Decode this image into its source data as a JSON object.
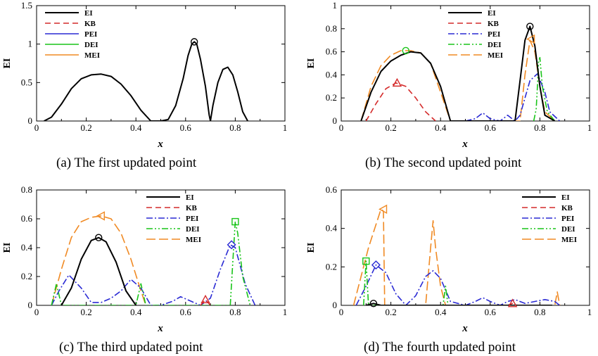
{
  "colors": {
    "EI": "#000000",
    "KB": "#d42a2a",
    "PEI": "#2a2ad4",
    "DEI": "#19c419",
    "MEI": "#f08a24"
  },
  "chart_data": [
    {
      "type": "line",
      "caption": "(a)   The first updated point",
      "xlabel": "x",
      "ylabel": "EI",
      "xlim": [
        0,
        1
      ],
      "ylim": [
        0,
        1.5
      ],
      "xticks": [
        "0",
        "0.2",
        "0.4",
        "0.6",
        "0.8",
        "1"
      ],
      "yticks": [
        "0",
        "0.5",
        "1",
        "1.5"
      ],
      "legend": [
        "EI",
        "KB",
        "PEI",
        "DEI",
        "MEI"
      ],
      "legend_position": "top-left",
      "series": [
        {
          "name": "EI",
          "style": "solid",
          "x": [
            0.03,
            0.06,
            0.1,
            0.14,
            0.18,
            0.22,
            0.26,
            0.3,
            0.34,
            0.38,
            0.42,
            0.46,
            0.5,
            0.53,
            0.56,
            0.59,
            0.61,
            0.625,
            0.635,
            0.645,
            0.66,
            0.68,
            0.695,
            0.7,
            0.71,
            0.73,
            0.75,
            0.77,
            0.79,
            0.81,
            0.83,
            0.85
          ],
          "y": [
            0,
            0.05,
            0.22,
            0.42,
            0.55,
            0.6,
            0.61,
            0.58,
            0.48,
            0.33,
            0.14,
            0,
            0,
            0.02,
            0.2,
            0.55,
            0.85,
            1.0,
            1.03,
            1.0,
            0.8,
            0.45,
            0.08,
            0,
            0.2,
            0.5,
            0.67,
            0.7,
            0.6,
            0.38,
            0.12,
            0
          ]
        }
      ],
      "markers": [
        {
          "series": "EI",
          "shape": "circle",
          "x": 0.635,
          "y": 1.03
        }
      ]
    },
    {
      "type": "line",
      "caption": "(b)   The second updated point",
      "xlabel": "x",
      "ylabel": "EI",
      "xlim": [
        0,
        1
      ],
      "ylim": [
        0,
        1
      ],
      "xticks": [
        "0",
        "0.2",
        "0.4",
        "0.6",
        "0.8",
        "1"
      ],
      "yticks": [
        "0",
        "0.2",
        "0.4",
        "0.6",
        "0.8",
        "1"
      ],
      "legend": [
        "EI",
        "KB",
        "PEI",
        "DEI",
        "MEI"
      ],
      "legend_position": "top-right",
      "series": [
        {
          "name": "EI",
          "style": "solid",
          "x": [
            0.08,
            0.12,
            0.16,
            0.2,
            0.24,
            0.28,
            0.32,
            0.36,
            0.4,
            0.44,
            0.7,
            0.72,
            0.74,
            0.76,
            0.78,
            0.8,
            0.82,
            0.86
          ],
          "y": [
            0,
            0.25,
            0.43,
            0.52,
            0.57,
            0.6,
            0.59,
            0.5,
            0.3,
            0,
            0,
            0.35,
            0.7,
            0.82,
            0.65,
            0.3,
            0.05,
            0
          ]
        },
        {
          "name": "KB",
          "style": "dash",
          "x": [
            0.1,
            0.14,
            0.18,
            0.22,
            0.26,
            0.3,
            0.34,
            0.38
          ],
          "y": [
            0,
            0.15,
            0.28,
            0.33,
            0.3,
            0.2,
            0.08,
            0
          ]
        },
        {
          "name": "PEI",
          "style": "dashdot",
          "x": [
            0.5,
            0.54,
            0.57,
            0.6,
            0.64,
            0.67,
            0.7,
            0.72,
            0.74,
            0.76,
            0.79,
            0.82,
            0.84,
            0.88
          ],
          "y": [
            0,
            0.02,
            0.07,
            0.02,
            0,
            0.05,
            0,
            0.05,
            0.2,
            0.35,
            0.41,
            0.25,
            0.08,
            0
          ]
        },
        {
          "name": "DEI",
          "style": "dashdotdot",
          "x": [
            0.775,
            0.785,
            0.79,
            0.795,
            0.8,
            0.81,
            0.83,
            0.86
          ],
          "y": [
            0,
            0.1,
            0.3,
            0.52,
            0.55,
            0.3,
            0.08,
            0
          ]
        },
        {
          "name": "MEI",
          "style": "longdash",
          "x": [
            0.08,
            0.12,
            0.16,
            0.2,
            0.24,
            0.28,
            0.32,
            0.36,
            0.4,
            0.44,
            0.72,
            0.74,
            0.76,
            0.78,
            0.8,
            0.82,
            0.86
          ],
          "y": [
            0,
            0.3,
            0.48,
            0.57,
            0.61,
            0.61,
            0.59,
            0.5,
            0.25,
            0,
            0,
            0.4,
            0.7,
            0.6,
            0.3,
            0.08,
            0
          ]
        }
      ],
      "markers": [
        {
          "series": "EI",
          "shape": "circle",
          "x": 0.76,
          "y": 0.82
        },
        {
          "series": "KB",
          "shape": "triangle",
          "x": 0.225,
          "y": 0.33
        },
        {
          "series": "DEI",
          "shape": "circle",
          "x": 0.26,
          "y": 0.61
        },
        {
          "series": "MEI",
          "shape": "triangle-left",
          "x": 0.765,
          "y": 0.71
        }
      ]
    },
    {
      "type": "line",
      "caption": "(c)   The third updated point",
      "xlabel": "x",
      "ylabel": "EI",
      "xlim": [
        0,
        1
      ],
      "ylim": [
        0,
        0.8
      ],
      "xticks": [
        "0",
        "0.2",
        "0.4",
        "0.6",
        "0.8",
        "1"
      ],
      "yticks": [
        "0",
        "0.2",
        "0.4",
        "0.6",
        "0.8"
      ],
      "legend": [
        "EI",
        "KB",
        "PEI",
        "DEI",
        "MEI"
      ],
      "legend_position": "top-center",
      "series": [
        {
          "name": "EI",
          "style": "solid",
          "x": [
            0.1,
            0.14,
            0.18,
            0.22,
            0.25,
            0.28,
            0.32,
            0.36,
            0.4
          ],
          "y": [
            0,
            0.12,
            0.32,
            0.45,
            0.47,
            0.44,
            0.3,
            0.1,
            0
          ]
        },
        {
          "name": "KB",
          "style": "dash",
          "x": [
            0.66,
            0.68,
            0.7
          ],
          "y": [
            0,
            0.04,
            0
          ]
        },
        {
          "name": "PEI",
          "style": "dashdot",
          "x": [
            0.06,
            0.09,
            0.13,
            0.18,
            0.22,
            0.26,
            0.3,
            0.34,
            0.38,
            0.42,
            0.46,
            0.5,
            0.55,
            0.58,
            0.62,
            0.66,
            0.7,
            0.74,
            0.78,
            0.8,
            0.84,
            0.88
          ],
          "y": [
            0,
            0.1,
            0.21,
            0.12,
            0.02,
            0.02,
            0.05,
            0.1,
            0.18,
            0.12,
            0,
            0,
            0.03,
            0.06,
            0.03,
            0,
            0.05,
            0.25,
            0.42,
            0.4,
            0.15,
            0
          ]
        },
        {
          "name": "DEI",
          "style": "dashdotdot",
          "x": [
            0.06,
            0.08,
            0.1,
            0.4,
            0.42,
            0.44,
            0.78,
            0.79,
            0.8,
            0.81,
            0.83,
            0.86
          ],
          "y": [
            0,
            0.15,
            0,
            0,
            0.15,
            0,
            0,
            0.3,
            0.58,
            0.5,
            0.2,
            0
          ]
        },
        {
          "name": "MEI",
          "style": "longdash",
          "x": [
            0.06,
            0.1,
            0.14,
            0.18,
            0.22,
            0.26,
            0.3,
            0.34,
            0.38,
            0.42,
            0.44
          ],
          "y": [
            0,
            0.25,
            0.47,
            0.58,
            0.61,
            0.62,
            0.6,
            0.5,
            0.32,
            0.1,
            0
          ]
        }
      ],
      "markers": [
        {
          "series": "EI",
          "shape": "circle",
          "x": 0.25,
          "y": 0.47
        },
        {
          "series": "KB",
          "shape": "triangle",
          "x": 0.68,
          "y": 0.04
        },
        {
          "series": "PEI",
          "shape": "diamond",
          "x": 0.785,
          "y": 0.42
        },
        {
          "series": "DEI",
          "shape": "square",
          "x": 0.8,
          "y": 0.58
        },
        {
          "series": "MEI",
          "shape": "triangle-left",
          "x": 0.26,
          "y": 0.62
        }
      ]
    },
    {
      "type": "line",
      "caption": "(d)   The fourth updated point",
      "xlabel": "x",
      "ylabel": "EI",
      "xlim": [
        0,
        1
      ],
      "ylim": [
        0,
        0.6
      ],
      "xticks": [
        "0",
        "0.2",
        "0.4",
        "0.6",
        "0.8",
        "1"
      ],
      "yticks": [
        "0",
        "0.2",
        "0.4",
        "0.6"
      ],
      "legend": [
        "EI",
        "KB",
        "PEI",
        "DEI",
        "MEI"
      ],
      "legend_position": "top-right",
      "series": [
        {
          "name": "EI",
          "style": "solid",
          "x": [
            0.1,
            0.13,
            0.16,
            0.8,
            0.85
          ],
          "y": [
            0,
            0.01,
            0,
            0,
            0
          ]
        },
        {
          "name": "KB",
          "style": "dash",
          "x": [
            0.67,
            0.69,
            0.71
          ],
          "y": [
            0,
            0.01,
            0
          ]
        },
        {
          "name": "PEI",
          "style": "dashdot",
          "x": [
            0.06,
            0.1,
            0.14,
            0.18,
            0.22,
            0.26,
            0.3,
            0.34,
            0.37,
            0.4,
            0.44,
            0.5,
            0.54,
            0.57,
            0.6,
            0.64,
            0.67,
            0.7,
            0.74,
            0.78,
            0.82,
            0.86,
            0.88
          ],
          "y": [
            0,
            0.1,
            0.21,
            0.17,
            0.06,
            0,
            0.05,
            0.15,
            0.18,
            0.14,
            0.02,
            0,
            0.02,
            0.04,
            0.02,
            0,
            0.02,
            0.03,
            0.01,
            0.02,
            0.03,
            0.02,
            0
          ]
        },
        {
          "name": "DEI",
          "style": "dashdotdot",
          "x": [
            0.09,
            0.1,
            0.11,
            0.41,
            0.42,
            0.43
          ],
          "y": [
            0,
            0.23,
            0,
            0,
            0.1,
            0
          ]
        },
        {
          "name": "MEI",
          "style": "longdash",
          "x": [
            0.05,
            0.08,
            0.11,
            0.14,
            0.16,
            0.17,
            0.175,
            0.34,
            0.36,
            0.37,
            0.38,
            0.4,
            0.42,
            0.86,
            0.87,
            0.88
          ],
          "y": [
            0,
            0.15,
            0.3,
            0.42,
            0.5,
            0.49,
            0,
            0,
            0.3,
            0.44,
            0.3,
            0.1,
            0,
            0,
            0.07,
            0
          ]
        }
      ],
      "markers": [
        {
          "series": "EI",
          "shape": "circle",
          "x": 0.13,
          "y": 0.01
        },
        {
          "series": "KB",
          "shape": "triangle",
          "x": 0.69,
          "y": 0.01
        },
        {
          "series": "PEI",
          "shape": "diamond",
          "x": 0.14,
          "y": 0.21
        },
        {
          "series": "DEI",
          "shape": "square",
          "x": 0.1,
          "y": 0.23
        },
        {
          "series": "MEI",
          "shape": "triangle-left",
          "x": 0.17,
          "y": 0.5
        }
      ]
    }
  ]
}
